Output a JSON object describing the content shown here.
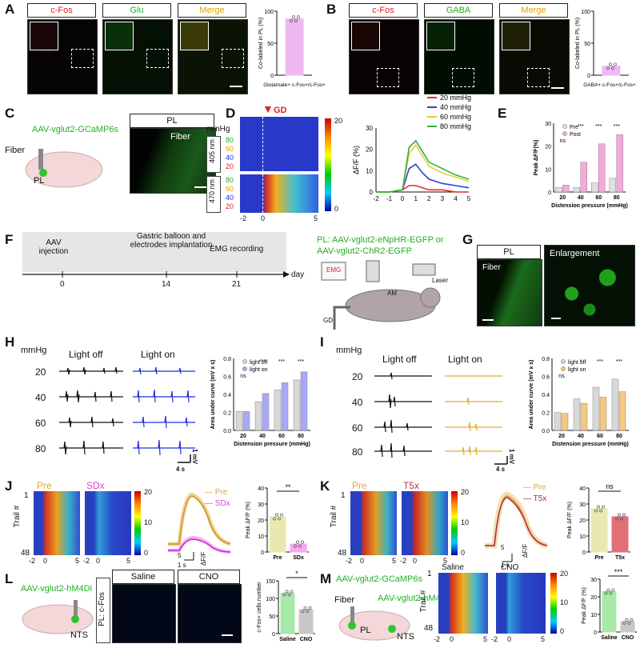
{
  "panels": {
    "A": {
      "label": "A",
      "titles": [
        "c-Fos",
        "Glu",
        "Merge"
      ],
      "ylabel": "Co-labeled in PL (%)",
      "yticks": [
        "100",
        "50",
        "0"
      ],
      "xlabel": "Glutamate+ c-Fos+/c-Fos+"
    },
    "B": {
      "label": "B",
      "titles": [
        "c-Fos",
        "GABA",
        "Merge"
      ],
      "ylabel": "Co-labeled in PL (%)",
      "yticks": [
        "100",
        "50",
        "0"
      ],
      "xlabel": "GABA+ c-Fos+/c-Fos+"
    },
    "C": {
      "label": "C",
      "virus": "AAV-vglut2-GCaMP6s",
      "fiber": "Fiber",
      "region": "PL",
      "img_title": "PL",
      "img_fiber": "Fiber"
    },
    "D": {
      "label": "D",
      "mmhg": "mmHg",
      "gd": "GD",
      "rows1": "405 nm",
      "rows2": "470 nm",
      "pressures": [
        "80",
        "60",
        "40",
        "20"
      ],
      "xticks": [
        "-2",
        "0",
        "5"
      ],
      "cbar": [
        "20",
        "0"
      ],
      "ylabel": "ΔF/F (%)",
      "yticks": [
        "30",
        "20",
        "10",
        "0"
      ],
      "xticks2": [
        "-2",
        "-1",
        "0",
        "1",
        "2",
        "3",
        "4",
        "5"
      ],
      "legend": [
        "20 mmHg",
        "40 mmHg",
        "60 mmHg",
        "80 mmHg"
      ]
    },
    "E": {
      "label": "E",
      "ylabel": "Peak ΔF/F(%)",
      "yticks": [
        "30",
        "20",
        "10",
        "0"
      ],
      "xticks": [
        "20",
        "40",
        "60",
        "80"
      ],
      "xlabel": "Distension pressure (mmHg)",
      "legend": [
        "Pre",
        "Post"
      ],
      "sig": [
        "ns",
        "***",
        "***",
        "***"
      ]
    },
    "F": {
      "label": "F",
      "steps": [
        "AAV injection",
        "Gastric balloon and electrodes implantation",
        "EMG recording"
      ],
      "ticks": [
        "0",
        "14",
        "21"
      ],
      "unit": "day",
      "virus1": "PL: AAV-vglut2-eNpHR-EGFP or",
      "virus2": "AAV-vglut2-ChR2-EGFP",
      "emg": "EMG",
      "laser": "Laser",
      "am": "AM",
      "gd": "GD"
    },
    "G": {
      "label": "G",
      "t1": "PL",
      "fiber": "Fiber",
      "t2": "Enlargement"
    },
    "H": {
      "label": "H",
      "mmhg": "mmHg",
      "off": "Light off",
      "on": "Light on",
      "rows": [
        "20",
        "40",
        "60",
        "80"
      ],
      "scale_v": "1 mV",
      "scale_t": "4 s",
      "ylabel": "Area under curve (mV x s)",
      "yticks": [
        "0.8",
        "0.6",
        "0.4",
        "0.2",
        "0.0"
      ],
      "xticks": [
        "20",
        "40",
        "60",
        "80"
      ],
      "xlabel": "Distension pressure (mmHg)",
      "legend": [
        "light off",
        "light on"
      ],
      "sig": [
        "ns",
        "***",
        "***",
        "***"
      ]
    },
    "I": {
      "label": "I",
      "mmhg": "mmHg",
      "off": "Light off",
      "on": "Light on",
      "rows": [
        "20",
        "40",
        "60",
        "80"
      ],
      "scale_v": "1 mV",
      "scale_t": "4 s",
      "ylabel": "Area under curve (mV x s)",
      "yticks": [
        "0.8",
        "0.6",
        "0.4",
        "0.2",
        "0.0"
      ],
      "xticks": [
        "20",
        "40",
        "60",
        "80"
      ],
      "xlabel": "Distension pressure (mmHg)",
      "legend": [
        "light off",
        "light on"
      ],
      "sig": [
        "ns",
        "*",
        "***",
        "***"
      ]
    },
    "J": {
      "label": "J",
      "h1": "Pre",
      "h2": "SDx",
      "ylabel": "Trail #",
      "yt1": "1",
      "yt2": "48",
      "xticks": [
        "-2",
        "0",
        "5",
        "-2",
        "0",
        "5"
      ],
      "cbar": [
        "20",
        "10",
        "0"
      ],
      "legend": [
        "Pre",
        "SDx"
      ],
      "scale_t": "1 s",
      "scale_y": "5",
      "dff": "ΔF/F",
      "bar_ylabel": "Peak ΔF/F (%)",
      "bar_yticks": [
        "40",
        "30",
        "20",
        "10",
        "0"
      ],
      "bar_x": [
        "Pre",
        "SDx"
      ],
      "sig": "**"
    },
    "K": {
      "label": "K",
      "h1": "Pre",
      "h2": "T5x",
      "ylabel": "Trail #",
      "yt1": "1",
      "yt2": "48",
      "xticks": [
        "-2",
        "0",
        "5",
        "-2",
        "0",
        "5"
      ],
      "cbar": [
        "20",
        "10",
        "0"
      ],
      "legend": [
        "Pre",
        "T5x"
      ],
      "scale_t": "1 s",
      "scale_y": "5",
      "dff": "ΔF/F",
      "bar_ylabel": "Peak ΔF/F (%)",
      "bar_yticks": [
        "40",
        "30",
        "20",
        "10",
        "0"
      ],
      "bar_x": [
        "Pre",
        "T5x"
      ],
      "sig": "ns"
    },
    "L": {
      "label": "L",
      "virus": "AAV-vglut2-hM4Di",
      "region": "NTS",
      "side": "PL: c-Fos",
      "t1": "Saline",
      "t2": "CNO",
      "ylabel": "c-Fos+ cells number",
      "yticks": [
        "150",
        "100",
        "50",
        "0"
      ],
      "bar_x": [
        "Saline",
        "CNO"
      ],
      "sig": "*"
    },
    "M": {
      "label": "M",
      "virus1": "AAV-vglut2-GCaMP6s",
      "fiber": "Fiber",
      "virus2": "AAV-vglut2-hM4Di",
      "pl": "PL",
      "nts": "NTS",
      "t1": "Saline",
      "t2": "CNO",
      "ylabel": "Trail #",
      "yt1": "1",
      "yt2": "48",
      "xticks": [
        "-2",
        "0",
        "5",
        "-2",
        "0",
        "5"
      ],
      "cbar": [
        "20",
        "10",
        "0"
      ],
      "bar_ylabel": "Peak ΔF/F (%)",
      "bar_yticks": [
        "30",
        "20",
        "10",
        "0"
      ],
      "bar_x": [
        "Saline",
        "CNO"
      ],
      "sig": "***"
    }
  },
  "chart_data": [
    {
      "type": "bar",
      "panel": "A",
      "categories": [
        "Glutamate+ c-Fos+/c-Fos+"
      ],
      "values": [
        88
      ],
      "ylim": [
        0,
        100
      ]
    },
    {
      "type": "bar",
      "panel": "B",
      "categories": [
        "GABA+ c-Fos+/c-Fos+"
      ],
      "values": [
        14
      ],
      "ylim": [
        0,
        100
      ]
    },
    {
      "type": "line",
      "panel": "D",
      "x": [
        -2,
        -1,
        0,
        0.5,
        1,
        1.5,
        2,
        3,
        4,
        5
      ],
      "series": [
        {
          "name": "20 mmHg",
          "values": [
            0,
            0,
            1,
            3,
            3,
            2,
            1,
            1,
            0,
            0
          ]
        },
        {
          "name": "40 mmHg",
          "values": [
            0,
            0,
            1,
            11,
            13,
            9,
            6,
            4,
            3,
            2
          ]
        },
        {
          "name": "60 mmHg",
          "values": [
            0,
            0,
            1,
            18,
            22,
            17,
            12,
            9,
            7,
            5
          ]
        },
        {
          "name": "80 mmHg",
          "values": [
            0,
            0,
            1,
            21,
            24,
            19,
            14,
            11,
            8,
            6
          ]
        }
      ],
      "ylim": [
        0,
        30
      ]
    },
    {
      "type": "bar",
      "panel": "E",
      "categories": [
        "20",
        "40",
        "60",
        "80"
      ],
      "series": [
        {
          "name": "Pre",
          "values": [
            2,
            2,
            4,
            6
          ]
        },
        {
          "name": "Post",
          "values": [
            3,
            13,
            21,
            25
          ]
        }
      ],
      "ylim": [
        0,
        30
      ]
    },
    {
      "type": "bar",
      "panel": "H",
      "categories": [
        "20",
        "40",
        "60",
        "80"
      ],
      "series": [
        {
          "name": "light off",
          "values": [
            0.21,
            0.32,
            0.45,
            0.56
          ]
        },
        {
          "name": "light on",
          "values": [
            0.21,
            0.41,
            0.53,
            0.65
          ]
        }
      ],
      "ylim": [
        0,
        0.8
      ]
    },
    {
      "type": "bar",
      "panel": "I",
      "categories": [
        "20",
        "40",
        "60",
        "80"
      ],
      "series": [
        {
          "name": "light off",
          "values": [
            0.2,
            0.35,
            0.48,
            0.57
          ]
        },
        {
          "name": "light on",
          "values": [
            0.19,
            0.3,
            0.37,
            0.43
          ]
        }
      ],
      "ylim": [
        0,
        0.8
      ]
    },
    {
      "type": "bar",
      "panel": "J",
      "categories": [
        "Pre",
        "SDx"
      ],
      "values": [
        22,
        5
      ],
      "ylim": [
        0,
        40
      ]
    },
    {
      "type": "bar",
      "panel": "K",
      "categories": [
        "Pre",
        "T5x"
      ],
      "values": [
        27,
        22
      ],
      "ylim": [
        0,
        40
      ]
    },
    {
      "type": "bar",
      "panel": "L",
      "categories": [
        "Saline",
        "CNO"
      ],
      "values": [
        115,
        68
      ],
      "ylim": [
        0,
        150
      ]
    },
    {
      "type": "bar",
      "panel": "M",
      "categories": [
        "Saline",
        "CNO"
      ],
      "values": [
        23,
        6
      ],
      "ylim": [
        0,
        30
      ]
    }
  ]
}
